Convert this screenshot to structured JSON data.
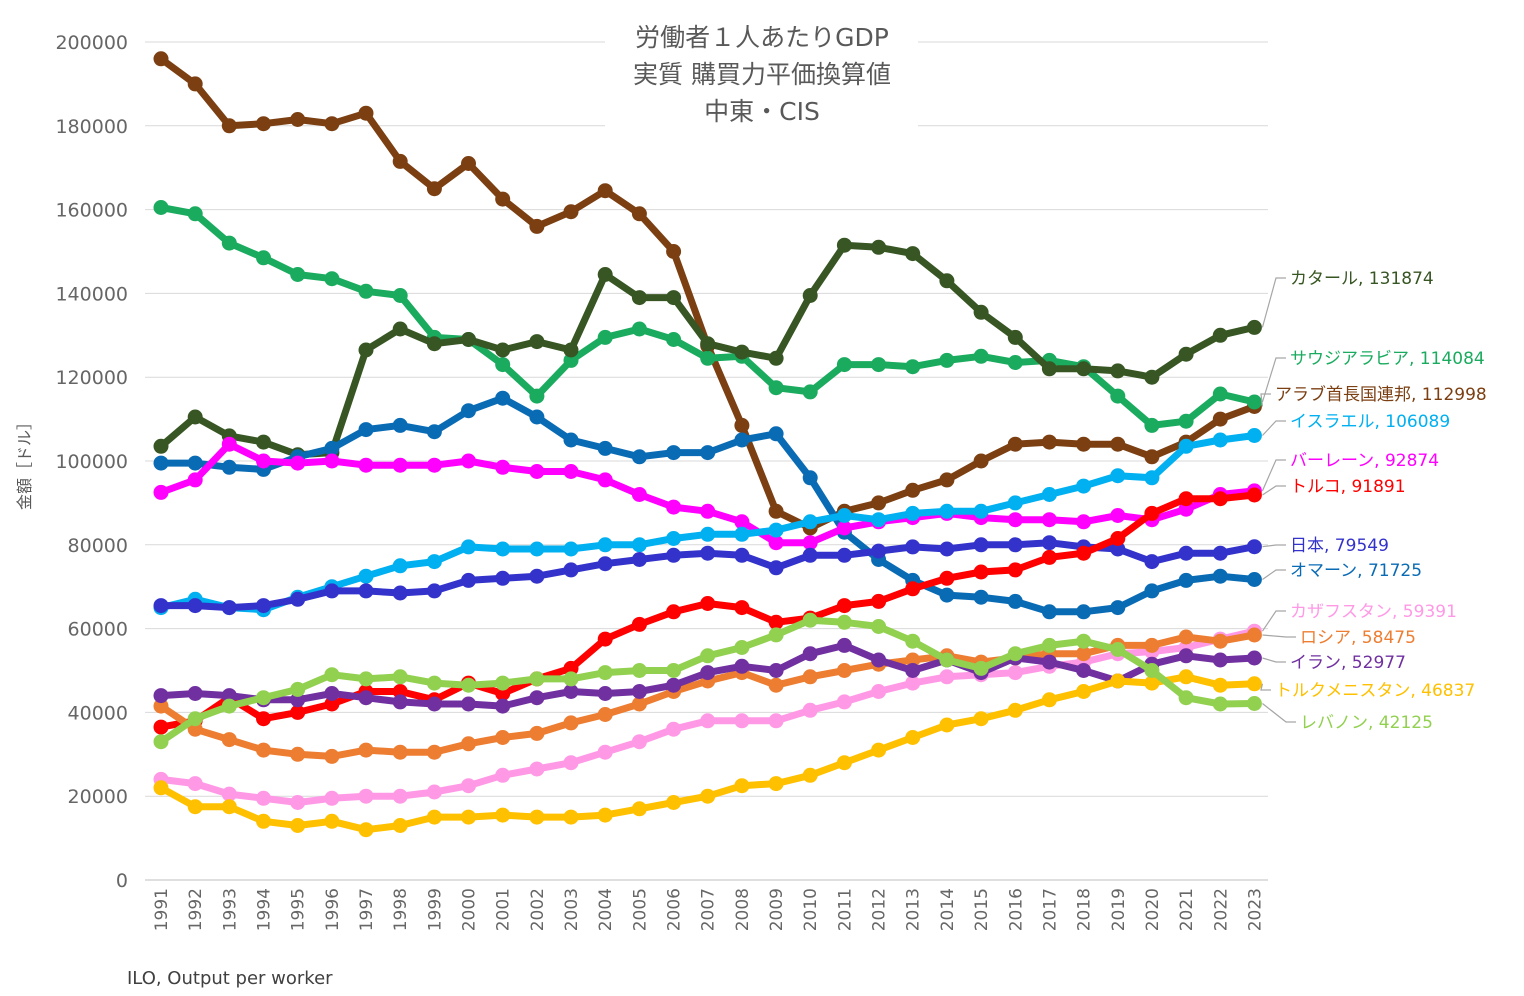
{
  "chart_data": {
    "type": "line",
    "title_lines": [
      "労働者１人あたりGDP",
      "実質 購買力平価換算値",
      "中東・CIS"
    ],
    "ylabel": "金額［ドル］",
    "xlabel": "",
    "source": "ILO, Output per worker",
    "ylim": [
      0,
      200000
    ],
    "yticks": [
      0,
      20000,
      40000,
      60000,
      80000,
      100000,
      120000,
      140000,
      160000,
      180000,
      200000
    ],
    "grid": "horizontal",
    "legend": "end-labels",
    "x": [
      1991,
      1992,
      1993,
      1994,
      1995,
      1996,
      1997,
      1998,
      1999,
      2000,
      2001,
      2002,
      2003,
      2004,
      2005,
      2006,
      2007,
      2008,
      2009,
      2010,
      2011,
      2012,
      2013,
      2014,
      2015,
      2016,
      2017,
      2018,
      2019,
      2020,
      2021,
      2022,
      2023
    ],
    "series": [
      {
        "name": "アラブ首長国連邦",
        "end_label": "アラブ首長国連邦, 112998",
        "color": "#7B3F12",
        "values": [
          196000,
          190000,
          180000,
          180500,
          181500,
          180500,
          183000,
          171500,
          165000,
          171000,
          162500,
          156000,
          159500,
          164500,
          159000,
          150000,
          127500,
          108500,
          88000,
          84000,
          88000,
          90000,
          93000,
          95500,
          100000,
          104000,
          104500,
          104000,
          104000,
          101000,
          104500,
          110000,
          112998
        ]
      },
      {
        "name": "サウジアラビア",
        "end_label": "サウジアラビア, 114084",
        "color": "#1AAB5F",
        "values": [
          160500,
          159000,
          152000,
          148500,
          144500,
          143500,
          140500,
          139500,
          129500,
          129000,
          123000,
          115500,
          124000,
          129500,
          131500,
          129000,
          124500,
          125000,
          117500,
          116500,
          123000,
          123000,
          122500,
          124000,
          125000,
          123500,
          124000,
          122500,
          115500,
          108500,
          109500,
          116000,
          114084
        ]
      },
      {
        "name": "カタール",
        "end_label": "カタール, 131874",
        "color": "#375623",
        "values": [
          103500,
          110500,
          106000,
          104500,
          101500,
          102000,
          126500,
          131500,
          128000,
          129000,
          126500,
          128500,
          126500,
          144500,
          139000,
          139000,
          128000,
          126000,
          124500,
          139500,
          151500,
          151000,
          149500,
          143000,
          135500,
          129500,
          122000,
          122000,
          121500,
          120000,
          125500,
          130000,
          131874
        ]
      },
      {
        "name": "オマーン",
        "end_label": "オマーン, 71725",
        "color": "#0A6BB5",
        "values": [
          99500,
          99500,
          98500,
          98000,
          101000,
          103000,
          107500,
          108500,
          107000,
          112000,
          115000,
          110500,
          105000,
          103000,
          101000,
          102000,
          102000,
          105000,
          106500,
          96000,
          83000,
          76500,
          71500,
          68000,
          67500,
          66500,
          64000,
          64000,
          65000,
          69000,
          71500,
          72500,
          71725
        ]
      },
      {
        "name": "バーレーン",
        "end_label": "バーレーン, 92874",
        "color": "#FF00FF",
        "values": [
          92500,
          95500,
          104000,
          100000,
          99500,
          100000,
          99000,
          99000,
          99000,
          100000,
          98500,
          97500,
          97500,
          95500,
          92000,
          89000,
          88000,
          85500,
          80500,
          80500,
          84000,
          85500,
          86500,
          87500,
          86500,
          86000,
          86000,
          85500,
          87000,
          86000,
          88500,
          92000,
          92874
        ]
      },
      {
        "name": "イスラエル",
        "end_label": "イスラエル, 106089",
        "color": "#00B0F0",
        "values": [
          65000,
          67000,
          65000,
          64500,
          67500,
          70000,
          72500,
          75000,
          76000,
          79500,
          79000,
          79000,
          79000,
          80000,
          80000,
          81500,
          82500,
          82500,
          83500,
          85500,
          87000,
          86000,
          87500,
          88000,
          88000,
          90000,
          92000,
          94000,
          96500,
          96000,
          103500,
          105000,
          106089
        ]
      },
      {
        "name": "日本",
        "end_label": "日本, 79549",
        "color": "#3333CC",
        "values": [
          65500,
          65500,
          65000,
          65500,
          67000,
          69000,
          69000,
          68500,
          69000,
          71500,
          72000,
          72500,
          74000,
          75500,
          76500,
          77500,
          78000,
          77500,
          74500,
          77500,
          77500,
          78500,
          79500,
          79000,
          80000,
          80000,
          80500,
          79500,
          79000,
          76000,
          78000,
          78000,
          79549
        ]
      },
      {
        "name": "トルコ",
        "end_label": "トルコ, 91891",
        "color": "#FF0000",
        "values": [
          36500,
          38000,
          43500,
          38500,
          40000,
          42000,
          45000,
          45000,
          43000,
          47000,
          44500,
          48000,
          50500,
          57500,
          61000,
          64000,
          66000,
          65000,
          61500,
          62500,
          65500,
          66500,
          69500,
          72000,
          73500,
          74000,
          77000,
          78000,
          81500,
          87500,
          91000,
          91000,
          91891
        ]
      },
      {
        "name": "カザフスタン",
        "end_label": "カザフスタン, 59391",
        "color": "#FF99E6",
        "values": [
          24000,
          23000,
          20500,
          19500,
          18500,
          19500,
          20000,
          20000,
          21000,
          22500,
          25000,
          26500,
          28000,
          30500,
          33000,
          36000,
          38000,
          38000,
          38000,
          40500,
          42500,
          45000,
          47000,
          48500,
          49000,
          49500,
          51000,
          52000,
          54000,
          54500,
          55500,
          57500,
          59391
        ]
      },
      {
        "name": "ロシア",
        "end_label": "ロシア, 58475",
        "color": "#ED7D31",
        "values": [
          41500,
          36000,
          33500,
          31000,
          30000,
          29500,
          31000,
          30500,
          30500,
          32500,
          34000,
          35000,
          37500,
          39500,
          42000,
          45000,
          47500,
          49500,
          46500,
          48500,
          50000,
          51500,
          52500,
          53500,
          52000,
          53000,
          54000,
          54000,
          56000,
          56000,
          58000,
          57000,
          58475
        ]
      },
      {
        "name": "イラン",
        "end_label": "イラン, 52977",
        "color": "#7030A0",
        "values": [
          44000,
          44500,
          44000,
          43000,
          43000,
          44500,
          43500,
          42500,
          42000,
          42000,
          41500,
          43500,
          45000,
          44500,
          45000,
          46500,
          49500,
          51000,
          50000,
          54000,
          56000,
          52500,
          50000,
          52500,
          49500,
          53000,
          52000,
          50000,
          47500,
          51500,
          53500,
          52500,
          52977
        ]
      },
      {
        "name": "トルクメニスタン",
        "end_label": "トルクメニスタン, 46837",
        "color": "#FFC000",
        "values": [
          22000,
          17500,
          17500,
          14000,
          13000,
          14000,
          12000,
          13000,
          15000,
          15000,
          15500,
          15000,
          15000,
          15500,
          17000,
          18500,
          20000,
          22500,
          23000,
          25000,
          28000,
          31000,
          34000,
          37000,
          38500,
          40500,
          43000,
          45000,
          47500,
          47000,
          48500,
          46500,
          46837
        ]
      },
      {
        "name": "レバノン",
        "end_label": "レバノン, 42125",
        "color": "#92D050",
        "values": [
          33000,
          38500,
          41500,
          43500,
          45500,
          49000,
          48000,
          48500,
          47000,
          46500,
          47000,
          48000,
          48000,
          49500,
          50000,
          50000,
          53500,
          55500,
          58500,
          62000,
          61500,
          60500,
          57000,
          52500,
          50500,
          54000,
          56000,
          57000,
          55000,
          50000,
          43500,
          42000,
          42125
        ]
      }
    ]
  }
}
